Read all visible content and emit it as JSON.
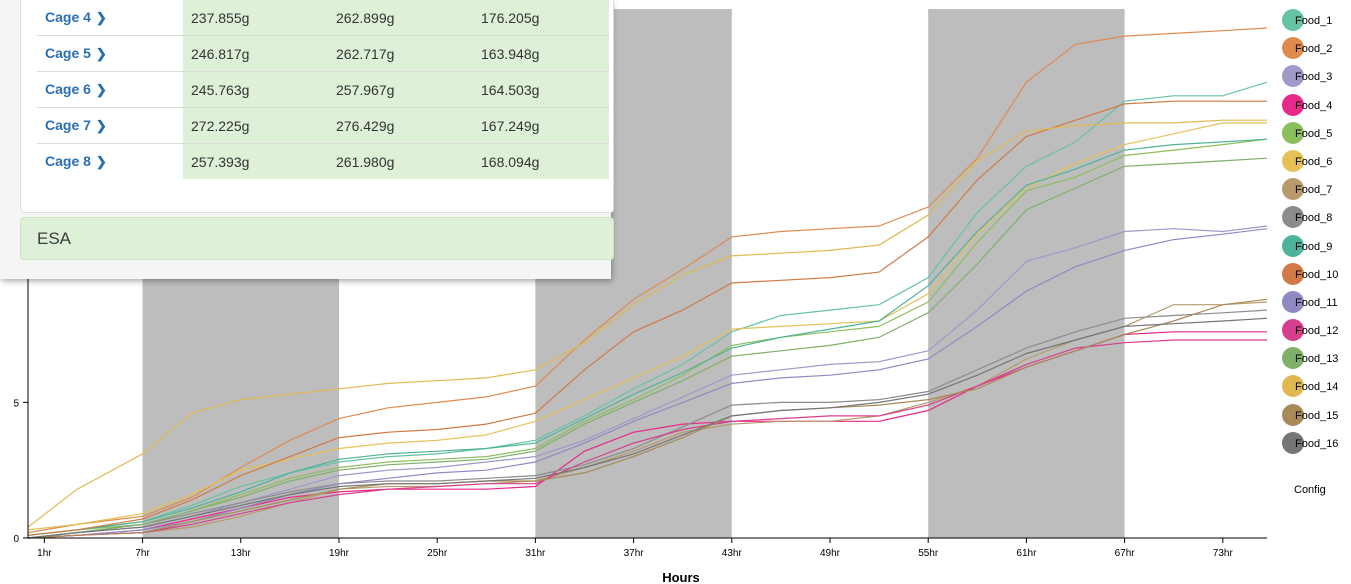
{
  "panel": {
    "cages": [
      {
        "label": "Cage 4",
        "values": [
          "237.855g",
          "262.899g",
          "176.205g"
        ]
      },
      {
        "label": "Cage 5",
        "values": [
          "246.817g",
          "262.717g",
          "163.948g"
        ]
      },
      {
        "label": "Cage 6",
        "values": [
          "245.763g",
          "257.967g",
          "164.503g"
        ]
      },
      {
        "label": "Cage 7",
        "values": [
          "272.225g",
          "276.429g",
          "167.249g"
        ]
      },
      {
        "label": "Cage 8",
        "values": [
          "257.393g",
          "261.980g",
          "168.094g"
        ]
      }
    ],
    "section_label": "ESA"
  },
  "config_label": "Config",
  "chart_data": {
    "type": "line",
    "xlabel": "Hours",
    "ylabel": "",
    "xlim": [
      0,
      75.7
    ],
    "ylim": [
      0,
      19.5
    ],
    "x_ticks": [
      1,
      7,
      13,
      19,
      25,
      31,
      37,
      43,
      49,
      55,
      61,
      67,
      73
    ],
    "x_tick_labels": [
      "1hr",
      "7hr",
      "13hr",
      "19hr",
      "25hr",
      "31hr",
      "37hr",
      "43hr",
      "49hr",
      "55hr",
      "61hr",
      "67hr",
      "73hr"
    ],
    "y_ticks": [
      0,
      5
    ],
    "y_tick_labels": [
      "0",
      "5"
    ],
    "dark_periods": [
      [
        7,
        19
      ],
      [
        31,
        43
      ],
      [
        55,
        67
      ]
    ],
    "dark_color": "#bdbdbd",
    "legend_position": "right",
    "x": [
      0,
      3,
      7,
      10,
      13,
      16,
      19,
      22,
      25,
      28,
      31,
      34,
      37,
      40,
      43,
      46,
      49,
      52,
      55,
      58,
      61,
      64,
      67,
      70,
      73,
      75.7
    ],
    "series": [
      {
        "name": "Food_1",
        "color": "#66c2a5",
        "values": [
          0.1,
          0.3,
          0.6,
          1.2,
          1.9,
          2.4,
          2.8,
          3.0,
          3.1,
          3.3,
          3.6,
          4.5,
          5.5,
          6.4,
          7.6,
          8.2,
          8.4,
          8.6,
          9.6,
          12.0,
          13.7,
          14.6,
          16.1,
          16.3,
          16.3,
          16.8
        ]
      },
      {
        "name": "Food_2",
        "color": "#e08a50",
        "values": [
          0.2,
          0.5,
          0.8,
          1.5,
          2.6,
          3.6,
          4.4,
          4.8,
          5.0,
          5.2,
          5.6,
          7.3,
          8.8,
          9.9,
          11.1,
          11.3,
          11.4,
          11.5,
          12.2,
          14.0,
          16.8,
          18.2,
          18.5,
          18.6,
          18.7,
          18.8
        ]
      },
      {
        "name": "Food_3",
        "color": "#9e9ac8",
        "values": [
          0.0,
          0.2,
          0.4,
          0.8,
          1.3,
          1.8,
          2.3,
          2.5,
          2.6,
          2.8,
          3.0,
          3.6,
          4.4,
          5.2,
          6.0,
          6.2,
          6.4,
          6.5,
          6.9,
          8.4,
          10.2,
          10.7,
          11.3,
          11.4,
          11.3,
          11.5
        ]
      },
      {
        "name": "Food_4",
        "color": "#e7298a",
        "values": [
          0.0,
          0.1,
          0.3,
          0.7,
          1.1,
          1.5,
          1.7,
          1.8,
          1.8,
          1.8,
          1.9,
          3.2,
          3.9,
          4.2,
          4.3,
          4.3,
          4.3,
          4.3,
          4.7,
          5.6,
          6.3,
          6.9,
          7.5,
          7.6,
          7.6,
          7.6
        ]
      },
      {
        "name": "Food_5",
        "color": "#8bbf5c",
        "values": [
          0.1,
          0.3,
          0.5,
          1.0,
          1.6,
          2.2,
          2.6,
          2.8,
          2.9,
          3.0,
          3.3,
          4.3,
          5.1,
          6.0,
          7.1,
          7.4,
          7.6,
          7.8,
          8.7,
          10.9,
          12.8,
          13.3,
          14.1,
          14.3,
          14.5,
          14.7
        ]
      },
      {
        "name": "Food_6",
        "color": "#e5c158",
        "values": [
          0.3,
          0.5,
          0.9,
          1.6,
          2.5,
          2.9,
          3.3,
          3.5,
          3.6,
          3.8,
          4.3,
          5.1,
          5.9,
          6.7,
          7.7,
          7.8,
          7.9,
          8.0,
          9.0,
          11.2,
          12.9,
          13.8,
          14.5,
          14.9,
          15.3,
          15.3
        ]
      },
      {
        "name": "Food_7",
        "color": "#b89a6c",
        "values": [
          0.0,
          0.1,
          0.2,
          0.4,
          0.8,
          1.3,
          1.8,
          1.9,
          1.9,
          2.0,
          2.1,
          2.6,
          3.2,
          3.9,
          4.2,
          4.3,
          4.3,
          4.5,
          5.0,
          5.6,
          6.6,
          7.3,
          7.8,
          8.6,
          8.6,
          8.7
        ]
      },
      {
        "name": "Food_8",
        "color": "#8c8c8c",
        "values": [
          0.0,
          0.2,
          0.5,
          0.9,
          1.3,
          1.7,
          2.0,
          2.1,
          2.1,
          2.2,
          2.3,
          2.7,
          3.3,
          4.1,
          4.9,
          5.0,
          5.0,
          5.1,
          5.4,
          6.2,
          7.0,
          7.6,
          8.1,
          8.2,
          8.3,
          8.4
        ]
      },
      {
        "name": "Food_9",
        "color": "#4fb39a",
        "values": [
          0.1,
          0.3,
          0.6,
          1.1,
          1.7,
          2.4,
          2.9,
          3.1,
          3.2,
          3.3,
          3.5,
          4.4,
          5.3,
          6.1,
          7.0,
          7.4,
          7.7,
          8.0,
          9.3,
          11.3,
          13.0,
          13.6,
          14.3,
          14.5,
          14.6,
          14.7
        ]
      },
      {
        "name": "Food_10",
        "color": "#d17a45",
        "values": [
          0.1,
          0.3,
          0.7,
          1.4,
          2.3,
          3.0,
          3.7,
          3.9,
          4.0,
          4.2,
          4.6,
          6.2,
          7.6,
          8.4,
          9.4,
          9.5,
          9.6,
          9.8,
          11.1,
          13.2,
          14.8,
          15.4,
          16.0,
          16.1,
          16.1,
          16.1
        ]
      },
      {
        "name": "Food_11",
        "color": "#8f8bc2",
        "values": [
          0.0,
          0.1,
          0.3,
          0.6,
          1.1,
          1.6,
          2.0,
          2.2,
          2.4,
          2.5,
          2.8,
          3.5,
          4.3,
          5.0,
          5.7,
          5.9,
          6.0,
          6.2,
          6.6,
          7.8,
          9.1,
          10.0,
          10.6,
          11.0,
          11.2,
          11.4
        ]
      },
      {
        "name": "Food_12",
        "color": "#d63f8e",
        "values": [
          0.0,
          0.1,
          0.2,
          0.5,
          0.9,
          1.3,
          1.6,
          1.8,
          1.9,
          2.0,
          2.0,
          2.8,
          3.5,
          4.0,
          4.3,
          4.4,
          4.5,
          4.5,
          4.9,
          5.6,
          6.4,
          7.0,
          7.2,
          7.3,
          7.3,
          7.3
        ]
      },
      {
        "name": "Food_13",
        "color": "#7fb06a",
        "values": [
          0.0,
          0.2,
          0.5,
          1.0,
          1.5,
          2.1,
          2.5,
          2.7,
          2.8,
          2.9,
          3.2,
          4.2,
          5.0,
          5.8,
          6.7,
          6.9,
          7.1,
          7.4,
          8.3,
          10.1,
          12.1,
          12.9,
          13.7,
          13.8,
          13.9,
          14.0
        ]
      },
      {
        "name": "Food_14",
        "color": "#dfb950",
        "values": [
          0.4,
          1.8,
          3.1,
          4.6,
          5.1,
          5.3,
          5.5,
          5.7,
          5.8,
          5.9,
          6.2,
          7.2,
          8.6,
          9.7,
          10.4,
          10.5,
          10.6,
          10.8,
          11.9,
          13.9,
          15.0,
          15.2,
          15.3,
          15.3,
          15.4,
          15.4
        ]
      },
      {
        "name": "Food_15",
        "color": "#a88a58",
        "values": [
          0.0,
          0.1,
          0.2,
          0.6,
          1.0,
          1.4,
          1.8,
          2.0,
          2.0,
          2.1,
          2.1,
          2.4,
          3.0,
          3.7,
          4.5,
          4.7,
          4.8,
          4.9,
          5.1,
          5.5,
          6.3,
          6.9,
          7.5,
          8.0,
          8.6,
          8.8
        ]
      },
      {
        "name": "Food_16",
        "color": "#757575",
        "values": [
          0.0,
          0.2,
          0.4,
          0.8,
          1.2,
          1.6,
          1.9,
          2.0,
          2.0,
          2.1,
          2.2,
          2.6,
          3.1,
          3.8,
          4.5,
          4.7,
          4.8,
          5.0,
          5.3,
          6.0,
          6.8,
          7.3,
          7.8,
          7.9,
          8.0,
          8.1
        ]
      }
    ]
  }
}
